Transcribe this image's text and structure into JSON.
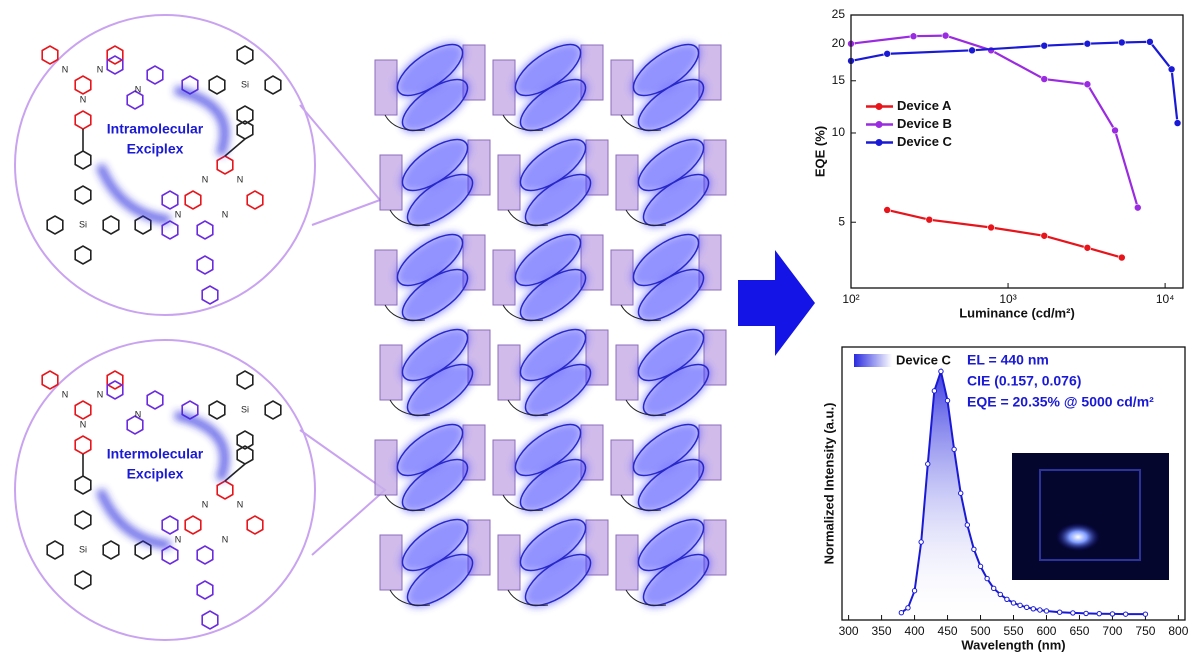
{
  "chart_data": [
    {
      "type": "line",
      "x_label": "Luminance (cd/m²)",
      "y_label": "EQE (%)",
      "xlim": [
        100,
        13000
      ],
      "xticks": [
        {
          "value": 100,
          "label": "10²"
        },
        {
          "value": 1000,
          "label": "10³"
        },
        {
          "value": 10000,
          "label": "10⁴"
        }
      ],
      "x_log": true,
      "ylim": [
        3,
        25
      ],
      "yticks": [
        5,
        10,
        15,
        20,
        25
      ],
      "y_log": true,
      "legend": "center left",
      "series": [
        {
          "name": "Device A",
          "color": "#e8141b",
          "x": [
            170,
            315,
            780,
            1700,
            3200,
            5300
          ],
          "values": [
            5.5,
            5.1,
            4.8,
            4.5,
            4.1,
            3.8
          ]
        },
        {
          "name": "Device B",
          "color": "#9a2be0",
          "x": [
            100,
            250,
            400,
            780,
            1700,
            3200,
            4800,
            6700
          ],
          "values": [
            20.0,
            21.2,
            21.3,
            19.0,
            15.2,
            14.6,
            10.2,
            5.6
          ]
        },
        {
          "name": "Device C",
          "color": "#1a1ad6",
          "x": [
            100,
            170,
            590,
            1700,
            3200,
            5300,
            8000,
            11000,
            12000
          ],
          "values": [
            17.5,
            18.5,
            19.0,
            19.7,
            20.0,
            20.2,
            20.3,
            16.4,
            10.8
          ]
        }
      ]
    },
    {
      "type": "area",
      "x_label": "Wavelength (nm)",
      "y_label": "Normalized Intensity (a.u.)",
      "xlim": [
        290,
        810
      ],
      "xticks": [
        300,
        350,
        400,
        450,
        500,
        550,
        600,
        650,
        700,
        750,
        800
      ],
      "ylim": [
        -0.02,
        1.1
      ],
      "annotations": [
        "EL = 440 nm",
        "CIE (0.157, 0.076)",
        "EQE = 20.35% @ 5000 cd/m²"
      ],
      "series": [
        {
          "name": "Device C",
          "color": "#1a1ad6",
          "x": [
            380,
            390,
            400,
            410,
            420,
            430,
            440,
            450,
            460,
            470,
            480,
            490,
            500,
            510,
            520,
            530,
            540,
            550,
            560,
            570,
            580,
            590,
            600,
            620,
            640,
            660,
            680,
            700,
            720,
            750
          ],
          "values": [
            0.01,
            0.03,
            0.1,
            0.3,
            0.62,
            0.92,
            1.0,
            0.88,
            0.68,
            0.5,
            0.37,
            0.27,
            0.2,
            0.15,
            0.11,
            0.085,
            0.065,
            0.05,
            0.04,
            0.032,
            0.026,
            0.021,
            0.017,
            0.012,
            0.009,
            0.007,
            0.006,
            0.005,
            0.004,
            0.004
          ]
        }
      ]
    }
  ],
  "diagram": {
    "top": {
      "label": [
        "Intramolecular",
        "Exciplex"
      ],
      "atoms": [
        "N",
        "N",
        "Si",
        "Si",
        "N",
        "N",
        "N",
        "N",
        "N",
        "N"
      ]
    },
    "bottom": {
      "label": [
        "Intermolecular",
        "Exciplex"
      ],
      "atoms": [
        "N",
        "N",
        "Si",
        "Si",
        "N",
        "N",
        "N",
        "N",
        "N",
        "N"
      ]
    }
  }
}
